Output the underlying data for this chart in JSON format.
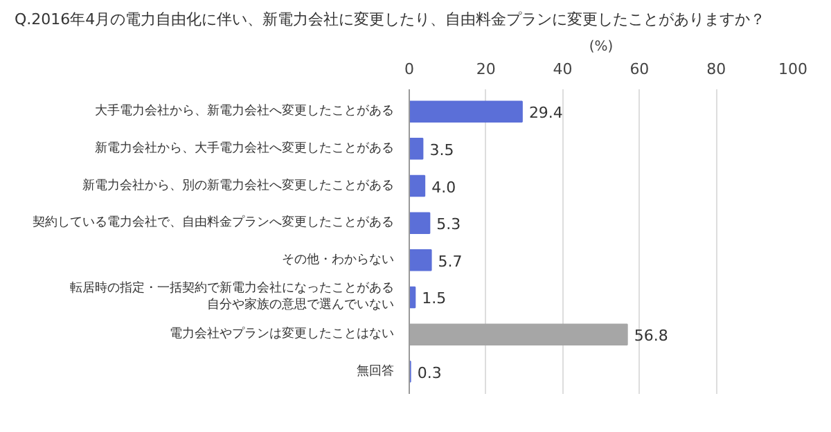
{
  "chart_data": {
    "type": "bar",
    "orientation": "horizontal",
    "title": "Q.2016年4月の電力自由化に伴い、新電力会社に変更したり、自由料金プランに変更したことがありますか？",
    "xlabel": "(%)",
    "categories": [
      "大手電力会社から、新電力会社へ変更したことがある",
      "新電力会社から、大手電力会社へ変更したことがある",
      "新電力会社から、別の新電力会社へ変更したことがある",
      "契約している電力会社で、自由料金プランへ変更したことがある",
      "その他・わからない",
      "転居時の指定・一括契約で新電力会社になったことがある自分や家族の意思で選んでいない",
      "電力会社やプランは変更したことはない",
      "無回答"
    ],
    "values": [
      29.4,
      3.5,
      4.0,
      5.3,
      5.7,
      1.5,
      56.8,
      0.3
    ],
    "colors": [
      "#5b6fd8",
      "#5b6fd8",
      "#5b6fd8",
      "#5b6fd8",
      "#5b6fd8",
      "#5b6fd8",
      "#a6a6a6",
      "#5b6fd8"
    ],
    "xlim": [
      0,
      100
    ],
    "xticks": [
      0,
      20,
      40,
      60,
      80,
      100
    ],
    "value_labels": [
      "29.4",
      "3.5",
      "4.0",
      "5.3",
      "5.7",
      "1.5",
      "56.8",
      "0.3"
    ],
    "grid": "x"
  }
}
